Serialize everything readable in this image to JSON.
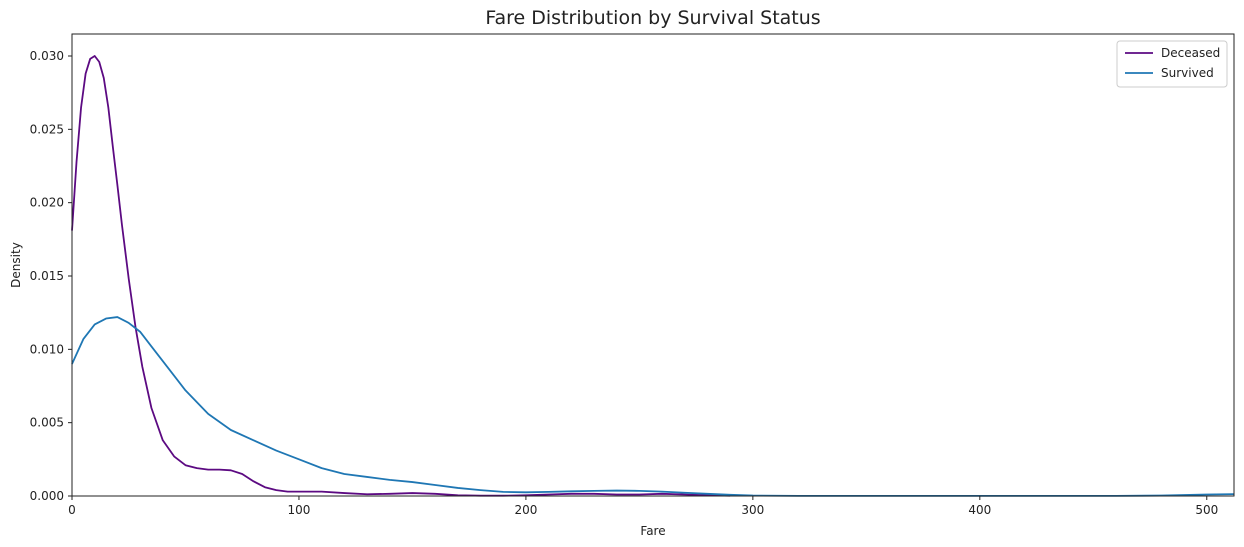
{
  "chart_data": {
    "type": "line",
    "title": "Fare Distribution by Survival Status",
    "xlabel": "Fare",
    "ylabel": "Density",
    "xlim": [
      0,
      512
    ],
    "ylim": [
      0,
      0.0315
    ],
    "xticks": [
      0,
      100,
      200,
      300,
      400,
      500
    ],
    "xtick_labels": [
      "0",
      "100",
      "200",
      "300",
      "400",
      "500"
    ],
    "yticks": [
      0,
      0.005,
      0.01,
      0.015,
      0.02,
      0.025,
      0.03
    ],
    "ytick_labels": [
      "0.000",
      "0.005",
      "0.010",
      "0.015",
      "0.020",
      "0.025",
      "0.030"
    ],
    "grid": false,
    "legend_position": "top-right",
    "series": [
      {
        "name": "Deceased",
        "color": "#5c0a82",
        "x": [
          0,
          2,
          4,
          6,
          8,
          10,
          12,
          14,
          16,
          18,
          20,
          22,
          25,
          28,
          31,
          35,
          40,
          45,
          50,
          55,
          60,
          65,
          70,
          75,
          80,
          85,
          90,
          95,
          100,
          110,
          120,
          130,
          140,
          150,
          160,
          170,
          180,
          190,
          200,
          210,
          220,
          230,
          240,
          250,
          260,
          270,
          280,
          290
        ],
        "y": [
          0.0181,
          0.0228,
          0.0265,
          0.0288,
          0.0298,
          0.03,
          0.0296,
          0.0285,
          0.0265,
          0.0238,
          0.0212,
          0.0185,
          0.0148,
          0.0115,
          0.0088,
          0.006,
          0.0038,
          0.0027,
          0.0021,
          0.0019,
          0.0018,
          0.0018,
          0.00175,
          0.0015,
          0.001,
          0.0006,
          0.0004,
          0.0003,
          0.0003,
          0.0003,
          0.0002,
          0.00012,
          0.00015,
          0.0002,
          0.00015,
          5e-05,
          2e-05,
          2e-05,
          5e-05,
          0.0001,
          0.00015,
          0.00015,
          0.0001,
          0.0001,
          0.00015,
          0.0001,
          5e-05,
          2e-05
        ]
      },
      {
        "name": "Survived",
        "color": "#1f77b4",
        "x": [
          0,
          5,
          10,
          15,
          20,
          25,
          30,
          35,
          40,
          50,
          60,
          70,
          80,
          90,
          100,
          110,
          120,
          130,
          140,
          150,
          160,
          170,
          180,
          190,
          200,
          210,
          220,
          230,
          240,
          250,
          260,
          270,
          280,
          290,
          300,
          320,
          340,
          360,
          380,
          400,
          420,
          440,
          460,
          480,
          500,
          512
        ],
        "y": [
          0.009,
          0.0107,
          0.0117,
          0.0121,
          0.0122,
          0.0118,
          0.0112,
          0.0102,
          0.0092,
          0.0072,
          0.0056,
          0.0045,
          0.0038,
          0.0031,
          0.0025,
          0.0019,
          0.0015,
          0.0013,
          0.0011,
          0.00095,
          0.00075,
          0.00055,
          0.0004,
          0.00028,
          0.00025,
          0.00028,
          0.00032,
          0.00035,
          0.00037,
          0.00035,
          0.0003,
          0.00022,
          0.00015,
          8e-05,
          3e-05,
          1e-05,
          1e-05,
          1e-05,
          1e-05,
          1e-05,
          1e-05,
          1e-05,
          1e-05,
          3e-05,
          0.0001,
          0.00013
        ]
      }
    ]
  }
}
